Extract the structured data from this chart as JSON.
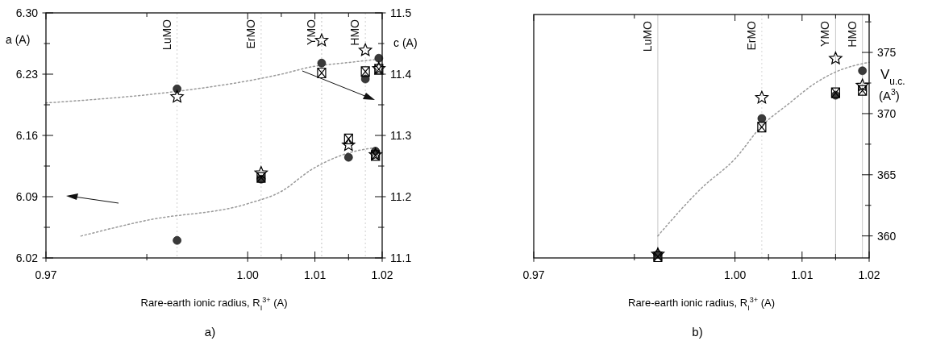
{
  "chart_data": [
    {
      "type": "scatter",
      "xlabel": "Rare-earth ionic radius, R$_{I}$$^{3+}$ (A)",
      "ylabel": "a (A)",
      "y2label": "c (A)",
      "annotations": [
        "a)"
      ],
      "xlim": [
        0.97,
        1.02
      ],
      "xticks": [
        0.97,
        {
          "value": 0.985,
          "label": null
        },
        {
          "value": 1.0,
          "label": "1.00"
        },
        {
          "value": 1.005,
          "label": null
        },
        1.01,
        {
          "value": 1.015,
          "label": null
        },
        1.02
      ],
      "ylim": [
        6.02,
        6.3
      ],
      "yticks": [
        6.02,
        {
          "value": 6.055,
          "label": null
        },
        6.09,
        {
          "value": 6.125,
          "label": null
        },
        6.16,
        {
          "value": 6.195,
          "label": null
        },
        6.23,
        {
          "value": 6.265,
          "label": null
        },
        {
          "value": 6.3,
          "label": "6.30"
        }
      ],
      "y2lim": [
        11.1,
        11.5
      ],
      "y2ticks": [
        11.1,
        {
          "value": 11.15,
          "label": null
        },
        11.2,
        {
          "value": 11.25,
          "label": null
        },
        11.3,
        {
          "value": 11.35,
          "label": null
        },
        11.4,
        {
          "value": 11.45,
          "label": null
        },
        11.5
      ],
      "grid": false,
      "ref_lines": [
        {
          "axis": "x",
          "value": 0.9895,
          "label": "LuMO",
          "color": "#d0d0d0",
          "line_style": "dotted"
        },
        {
          "axis": "x",
          "value": 1.002,
          "label": "ErMO",
          "color": "#d0d0d0",
          "line_style": "dotted"
        },
        {
          "axis": "x",
          "value": 1.011,
          "label": "YMO",
          "color": "#c0c0c0",
          "line_style": "dotted"
        },
        {
          "axis": "x",
          "value": 1.0175,
          "label": "HMO",
          "color": "#d0d0d0",
          "line_style": "dotted"
        }
      ],
      "series": [
        {
          "type": "scatter",
          "marker": "circle",
          "color": "#3a3a3a",
          "x": [
            0.9895,
            1.002,
            1.015,
            1.019
          ],
          "values": [
            6.04,
            6.11,
            6.135,
            6.142
          ]
        },
        {
          "type": "scatter",
          "marker": "star",
          "color": "#000000",
          "x": [
            1.002,
            1.015,
            1.019
          ],
          "values": [
            6.117,
            6.149,
            6.138
          ]
        },
        {
          "type": "scatter",
          "marker": "cross",
          "color": "#000000",
          "x": [
            1.002,
            1.015,
            1.019
          ],
          "values": [
            6.112,
            6.156,
            6.137
          ]
        },
        {
          "type": "line",
          "marker": "none",
          "line_style": "dotted",
          "color": "#9a9a9a",
          "x": [
            0.9752,
            0.985,
            1.0,
            1.005,
            1.0095,
            1.015,
            1.019
          ],
          "values": [
            6.045,
            6.063,
            6.082,
            6.096,
            6.121,
            6.14,
            6.146
          ]
        },
        {
          "type": "scatter",
          "axis": "y2",
          "marker": "circle",
          "color": "#3a3a3a",
          "x": [
            0.9895,
            1.011,
            1.0175,
            1.0195
          ],
          "values": [
            11.376,
            11.418,
            11.392,
            11.426
          ]
        },
        {
          "type": "scatter",
          "axis": "y2",
          "marker": "star",
          "color": "#000000",
          "x": [
            0.9895,
            1.011,
            1.0175,
            1.0195
          ],
          "values": [
            11.363,
            11.455,
            11.439,
            11.409
          ]
        },
        {
          "type": "scatter",
          "axis": "y2",
          "marker": "cross",
          "color": "#000000",
          "x": [
            1.011,
            1.0175,
            1.0195
          ],
          "values": [
            11.402,
            11.404,
            11.408
          ]
        },
        {
          "type": "line",
          "axis": "y2",
          "marker": "none",
          "line_style": "dotted",
          "color": "#9a9a9a",
          "x": [
            0.97,
            0.9895,
            1.0,
            1.005,
            1.0095,
            1.015,
            1.02
          ],
          "values": [
            11.353,
            11.372,
            11.389,
            11.4,
            11.412,
            11.419,
            11.425
          ]
        }
      ]
    },
    {
      "type": "scatter",
      "xlabel": "Rare-earth ionic radius, R$_{I}$$^{3+}$ (A)",
      "y2label": "V$_{u.c.}$ (A$^{3}$)",
      "annotations": [
        "b)"
      ],
      "xlim": [
        0.97,
        1.02
      ],
      "xticks": [
        0.97,
        {
          "value": 0.985,
          "label": null
        },
        {
          "value": 1.0,
          "label": "1.00"
        },
        {
          "value": 1.005,
          "label": null
        },
        1.01,
        {
          "value": 1.015,
          "label": null
        },
        1.02
      ],
      "y2lim": [
        358.2,
        378.1
      ],
      "y2ticks": [
        360,
        {
          "value": 362.5,
          "label": null
        },
        365,
        {
          "value": 367.5,
          "label": null
        },
        370,
        {
          "value": 372.5,
          "label": null
        },
        375,
        {
          "value": 377.5,
          "label": null
        }
      ],
      "grid": false,
      "ref_lines": [
        {
          "axis": "x",
          "value": 0.9885,
          "label": "LuMO",
          "color": "#c8c8c8",
          "line_style": "solid"
        },
        {
          "axis": "x",
          "value": 1.004,
          "label": "ErMO",
          "color": "#d8d8d8",
          "line_style": "dotted"
        },
        {
          "axis": "x",
          "value": 1.015,
          "label": "YMO",
          "color": "#c8c8c8",
          "line_style": "solid"
        },
        {
          "axis": "x",
          "value": 1.019,
          "label": "HMO",
          "color": "#c8c8c8",
          "line_style": "solid"
        }
      ],
      "series": [
        {
          "type": "scatter",
          "axis": "y2",
          "marker": "circle",
          "color": "#3a3a3a",
          "x": [
            0.9885,
            1.004,
            1.015,
            1.019
          ],
          "values": [
            358.5,
            369.6,
            371.5,
            373.5
          ]
        },
        {
          "type": "scatter",
          "axis": "y2",
          "marker": "star",
          "color": "#000000",
          "x": [
            0.9885,
            1.004,
            1.015,
            1.019
          ],
          "values": [
            358.5,
            371.3,
            374.5,
            372.3
          ]
        },
        {
          "type": "scatter",
          "axis": "y2",
          "marker": "cross",
          "color": "#000000",
          "x": [
            0.9885,
            1.004,
            1.015,
            1.019
          ],
          "values": [
            358.3,
            368.9,
            371.7,
            371.9
          ]
        },
        {
          "type": "line",
          "axis": "y2",
          "marker": "none",
          "line_style": "dotted",
          "color": "#9a9a9a",
          "x": [
            0.9885,
            0.995,
            1.0,
            1.004,
            1.008,
            1.012,
            1.015,
            1.02
          ],
          "values": [
            360.0,
            363.9,
            366.3,
            369.0,
            370.8,
            372.5,
            373.4,
            374.2
          ]
        }
      ]
    }
  ]
}
